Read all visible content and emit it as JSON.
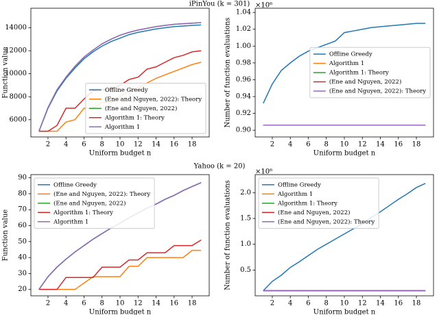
{
  "row_titles": [
    "iPinYou (k = 301)",
    "Yahoo (k = 20)"
  ],
  "chart_data": [
    {
      "type": "line",
      "ylabel": "Function value",
      "xlabel": "Uniform budget n",
      "legend": "lower right",
      "x": [
        1,
        2,
        3,
        4,
        5,
        6,
        7,
        8,
        9,
        10,
        11,
        12,
        13,
        14,
        15,
        16,
        17,
        18,
        19
      ],
      "xlim": [
        0.1,
        19.9
      ],
      "xticks": [
        2,
        4,
        6,
        8,
        10,
        12,
        14,
        16,
        18
      ],
      "ylim": [
        4500,
        15700
      ],
      "yticks": [
        6000,
        8000,
        10000,
        12000,
        14000
      ],
      "series": [
        {
          "name": "Offline Greedy",
          "color": "#1f77b4",
          "values": [
            5000,
            7000,
            8500,
            9600,
            10500,
            11300,
            11900,
            12400,
            12800,
            13100,
            13400,
            13600,
            13750,
            13900,
            14000,
            14100,
            14150,
            14200,
            14250
          ]
        },
        {
          "name": "(Ene and Nguyen, 2022): Theory",
          "color": "#ff7f0e",
          "values": [
            5000,
            5000,
            5000,
            5800,
            6000,
            7000,
            7000,
            7500,
            7500,
            8000,
            8500,
            8800,
            9200,
            9600,
            9900,
            10200,
            10500,
            10800,
            11000
          ]
        },
        {
          "name": "(Ene and Nguyen, 2022)",
          "color": "#2ca02c",
          "values": [
            5000,
            7050,
            8600,
            9700,
            10650,
            11450,
            12050,
            12600,
            13000,
            13350,
            13600,
            13800,
            13950,
            14100,
            14200,
            14300,
            14350,
            14400,
            14450
          ]
        },
        {
          "name": "Algorithm 1: Theory",
          "color": "#d62728",
          "values": [
            5000,
            5000,
            5500,
            7000,
            7000,
            7800,
            8500,
            8600,
            8600,
            9000,
            9500,
            9700,
            10400,
            10600,
            11000,
            11400,
            11600,
            11900,
            12000
          ]
        },
        {
          "name": "Algorithm 1",
          "color": "#9467bd",
          "values": [
            5000,
            7050,
            8600,
            9700,
            10650,
            11450,
            12050,
            12600,
            13000,
            13350,
            13600,
            13800,
            13950,
            14100,
            14200,
            14300,
            14350,
            14400,
            14450
          ]
        }
      ]
    },
    {
      "type": "line",
      "ylabel": "Number of function evaluations",
      "xlabel": "Uniform budget n",
      "y_offset_label": "×10⁶",
      "legend": "center right",
      "x": [
        1,
        2,
        3,
        4,
        5,
        6,
        7,
        8,
        9,
        10,
        11,
        12,
        13,
        14,
        15,
        16,
        17,
        18,
        19
      ],
      "xlim": [
        0.1,
        19.9
      ],
      "xticks": [
        2,
        4,
        6,
        8,
        10,
        12,
        14,
        16,
        18
      ],
      "ylim": [
        0.892,
        1.045
      ],
      "yticks": [
        {
          "value": 0.9,
          "label": "0.90"
        },
        {
          "value": 0.92,
          "label": "0.92"
        },
        {
          "value": 0.94,
          "label": "0.94"
        },
        {
          "value": 0.96,
          "label": "0.96"
        },
        {
          "value": 0.98,
          "label": "0.98"
        },
        {
          "value": 1.0,
          "label": "1.00"
        },
        {
          "value": 1.02,
          "label": "1.02"
        },
        {
          "value": 1.04,
          "label": "1.04"
        }
      ],
      "series": [
        {
          "name": "Offline Greedy",
          "color": "#1f77b4",
          "values": [
            0.932,
            0.955,
            0.971,
            0.98,
            0.988,
            0.994,
            0.998,
            1.002,
            1.006,
            1.016,
            1.018,
            1.02,
            1.022,
            1.023,
            1.024,
            1.025,
            1.026,
            1.027,
            1.027
          ]
        },
        {
          "name": "Algorithm 1",
          "color": "#ff7f0e",
          "values": [
            0.906,
            0.906,
            0.906,
            0.906,
            0.906,
            0.906,
            0.906,
            0.906,
            0.906,
            0.906,
            0.906,
            0.906,
            0.906,
            0.906,
            0.906,
            0.906,
            0.906,
            0.906,
            0.906
          ]
        },
        {
          "name": "Algorithm 1: Theory",
          "color": "#2ca02c",
          "values": [
            0.906,
            0.906,
            0.906,
            0.906,
            0.906,
            0.906,
            0.906,
            0.906,
            0.906,
            0.906,
            0.906,
            0.906,
            0.906,
            0.906,
            0.906,
            0.906,
            0.906,
            0.906,
            0.906
          ]
        },
        {
          "name": "(Ene and Nguyen, 2022)",
          "color": "#d62728",
          "values": [
            0.906,
            0.906,
            0.906,
            0.906,
            0.906,
            0.906,
            0.906,
            0.906,
            0.906,
            0.906,
            0.906,
            0.906,
            0.906,
            0.906,
            0.906,
            0.906,
            0.906,
            0.906,
            0.906
          ]
        },
        {
          "name": "(Ene and Nguyen, 2022): Theory",
          "color": "#9467bd",
          "values": [
            0.906,
            0.906,
            0.906,
            0.906,
            0.906,
            0.906,
            0.906,
            0.906,
            0.906,
            0.906,
            0.906,
            0.906,
            0.906,
            0.906,
            0.906,
            0.906,
            0.906,
            0.906,
            0.906
          ]
        }
      ]
    },
    {
      "type": "line",
      "ylabel": "Function value",
      "xlabel": "Uniform budget n",
      "legend": "upper left",
      "x": [
        1,
        2,
        3,
        4,
        5,
        6,
        7,
        8,
        9,
        10,
        11,
        12,
        13,
        14,
        15,
        16,
        17,
        18,
        19
      ],
      "xlim": [
        0.1,
        19.9
      ],
      "xticks": [
        2,
        4,
        6,
        8,
        10,
        12,
        14,
        16,
        18
      ],
      "ylim": [
        16,
        92
      ],
      "yticks": [
        20,
        30,
        40,
        50,
        60,
        70,
        80,
        90
      ],
      "series": [
        {
          "name": "Offline Greedy",
          "color": "#1f77b4",
          "values": [
            20,
            28,
            34,
            39,
            43.5,
            47.5,
            51.5,
            55,
            58.5,
            61.5,
            65,
            68,
            71,
            73.5,
            76.5,
            79,
            82,
            84.5,
            87
          ]
        },
        {
          "name": "(Ene and Nguyen, 2022): Theory",
          "color": "#ff7f0e",
          "values": [
            20,
            20,
            20,
            20,
            20,
            24,
            28,
            28,
            28,
            28,
            34.5,
            34.5,
            40,
            40,
            40,
            40,
            40,
            44.5,
            44.5
          ]
        },
        {
          "name": "(Ene and Nguyen, 2022)",
          "color": "#2ca02c",
          "values": [
            20,
            28,
            34,
            39,
            43.5,
            47.5,
            51.5,
            55,
            58.5,
            61.5,
            65,
            68,
            71,
            73.5,
            76.5,
            79,
            82,
            84.5,
            87
          ]
        },
        {
          "name": "Algorithm 1: Theory",
          "color": "#d62728",
          "values": [
            20,
            20,
            20,
            27.5,
            27.5,
            27.5,
            27.5,
            34,
            34,
            34,
            38.5,
            38.5,
            43,
            43,
            43,
            47.5,
            47.5,
            47.5,
            51
          ]
        },
        {
          "name": "Algorithm 1",
          "color": "#9467bd",
          "values": [
            20,
            28,
            34,
            39,
            43.5,
            47.5,
            51.5,
            55,
            58.5,
            61.5,
            65,
            68,
            71,
            73.5,
            76.5,
            79,
            82,
            84.5,
            87
          ]
        }
      ]
    },
    {
      "type": "line",
      "ylabel": "Number of function evaluations",
      "xlabel": "Uniform budget n",
      "y_offset_label": "×10⁶",
      "legend": "upper left",
      "x": [
        1,
        2,
        3,
        4,
        5,
        6,
        7,
        8,
        9,
        10,
        11,
        12,
        13,
        14,
        15,
        16,
        17,
        18,
        19
      ],
      "xlim": [
        0.1,
        19.9
      ],
      "xticks": [
        2,
        4,
        6,
        8,
        10,
        12,
        14,
        16,
        18
      ],
      "ylim": [
        0,
        2.35
      ],
      "yticks": [
        0.5,
        {
          "value": 1.0,
          "label": "1.0"
        },
        1.5,
        {
          "value": 2.0,
          "label": "2.0"
        }
      ],
      "series": [
        {
          "name": "Offline Greedy",
          "color": "#1f77b4",
          "values": [
            0.1,
            0.28,
            0.4,
            0.55,
            0.66,
            0.78,
            0.9,
            1.0,
            1.1,
            1.2,
            1.3,
            1.4,
            1.52,
            1.63,
            1.75,
            1.87,
            1.98,
            2.1,
            2.18
          ]
        },
        {
          "name": "Algorithm 1",
          "color": "#ff7f0e",
          "values": [
            0.1,
            0.1,
            0.1,
            0.1,
            0.1,
            0.1,
            0.1,
            0.1,
            0.1,
            0.1,
            0.1,
            0.1,
            0.1,
            0.1,
            0.1,
            0.1,
            0.1,
            0.1,
            0.1
          ]
        },
        {
          "name": "Algorithm 1: Theory",
          "color": "#2ca02c",
          "values": [
            0.1,
            0.1,
            0.1,
            0.1,
            0.1,
            0.1,
            0.1,
            0.1,
            0.1,
            0.1,
            0.1,
            0.1,
            0.1,
            0.1,
            0.1,
            0.1,
            0.1,
            0.1,
            0.1
          ]
        },
        {
          "name": "(Ene and Nguyen, 2022)",
          "color": "#d62728",
          "values": [
            0.1,
            0.1,
            0.1,
            0.1,
            0.1,
            0.1,
            0.1,
            0.1,
            0.1,
            0.1,
            0.1,
            0.1,
            0.1,
            0.1,
            0.1,
            0.1,
            0.1,
            0.1,
            0.1
          ]
        },
        {
          "name": "(Ene and Nguyen, 2022): Theory",
          "color": "#9467bd",
          "values": [
            0.1,
            0.1,
            0.1,
            0.1,
            0.1,
            0.1,
            0.1,
            0.1,
            0.1,
            0.1,
            0.1,
            0.1,
            0.1,
            0.1,
            0.1,
            0.1,
            0.1,
            0.1,
            0.1
          ]
        }
      ]
    }
  ]
}
